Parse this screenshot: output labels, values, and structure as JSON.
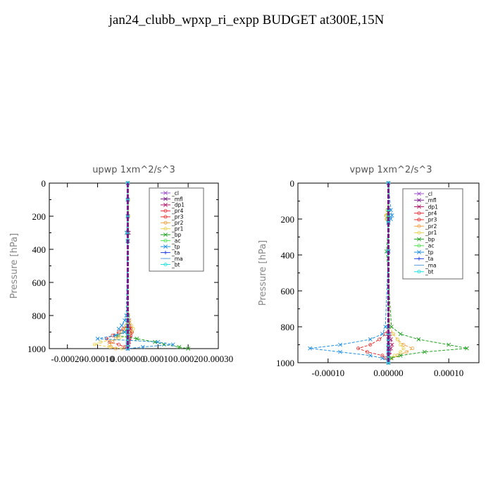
{
  "figure": {
    "title": "jan24_clubb_wpxp_ri_expp  BUDGET at300E,15N"
  },
  "chart_data": [
    {
      "type": "line",
      "title": "upwp   1xm^2/s^3",
      "ylabel": "Pressure [hPa]",
      "xlabel": "",
      "ylim": [
        1000,
        0
      ],
      "xlim": [
        -0.00026,
        0.0003
      ],
      "y_ticks": [
        "0",
        "200",
        "400",
        "600",
        "800",
        "1000"
      ],
      "x_ticks": [
        "-0.00020",
        "-0.00010",
        "0.000000",
        "0.00010",
        "0.00020",
        "0.00030"
      ],
      "legend_position": "top-right",
      "levels": [
        0,
        100,
        200,
        300,
        350,
        800,
        830,
        860,
        880,
        900,
        920,
        940,
        960,
        975,
        990,
        1000
      ],
      "series": [
        {
          "name": "_cl",
          "color": "#a050c8",
          "marker": "x",
          "values": [
            0,
            0,
            0,
            0,
            0,
            0,
            0,
            0,
            0,
            0,
            0,
            0,
            0,
            0,
            0,
            0
          ]
        },
        {
          "name": "_mfl",
          "color": "#7a1a8a",
          "marker": "x",
          "values": [
            0,
            0,
            0,
            0,
            0,
            0,
            0,
            0,
            0,
            0,
            0,
            0,
            0,
            0,
            0,
            0
          ]
        },
        {
          "name": "_dp1",
          "color": "#b0186a",
          "marker": "x",
          "values": [
            0,
            0,
            0,
            3e-06,
            0,
            0,
            4e-06,
            6e-06,
            8e-06,
            1e-05,
            8e-06,
            6e-06,
            4e-06,
            2e-06,
            1e-06,
            0
          ]
        },
        {
          "name": "_pr4",
          "color": "#e8303a",
          "marker": "o",
          "values": [
            0,
            0,
            0,
            0,
            0,
            0,
            2e-06,
            6e-06,
            1e-05,
            1.4e-05,
            1e-05,
            6e-06,
            3e-06,
            1e-06,
            0,
            0
          ]
        },
        {
          "name": "_pr3",
          "color": "#e83030",
          "marker": "o",
          "values": [
            0,
            0,
            0,
            0,
            0,
            0,
            0,
            -5e-06,
            -1.5e-05,
            -3e-05,
            -5e-05,
            -7e-05,
            -6e-05,
            -3e-05,
            -1e-05,
            0
          ]
        },
        {
          "name": "_pr2",
          "color": "#f0a040",
          "marker": "o",
          "values": [
            0,
            0,
            0,
            0,
            0,
            0,
            0,
            -5e-06,
            -1e-05,
            -2e-05,
            -3e-05,
            -4e-05,
            -5e-05,
            -6e-05,
            -5.5e-05,
            -4e-05
          ]
        },
        {
          "name": "_pr1",
          "color": "#e8d050",
          "marker": "o",
          "values": [
            0,
            2e-06,
            3e-06,
            0,
            0,
            2e-06,
            6e-06,
            1.2e-05,
            1.8e-05,
            1.2e-05,
            4e-06,
            -3e-05,
            -9e-05,
            -0.00011,
            -6e-05,
            -2e-05
          ]
        },
        {
          "name": "_bp",
          "color": "#20a020",
          "marker": "x",
          "values": [
            0,
            0,
            0,
            0,
            0,
            0,
            0,
            0,
            -2e-06,
            -1e-05,
            -4e-05,
            3e-05,
            9e-05,
            0.00012,
            0.00017,
            0.0002
          ]
        },
        {
          "name": "_ac",
          "color": "#50e050",
          "marker": "o",
          "values": [
            0,
            0,
            0,
            0,
            0,
            0,
            0,
            0,
            0,
            0,
            0,
            0,
            0,
            0,
            0,
            0
          ]
        },
        {
          "name": "_tp",
          "color": "#2090e0",
          "marker": "x",
          "values": [
            0,
            0,
            0,
            -4e-06,
            0,
            -5e-06,
            -1e-05,
            -2e-05,
            -3e-05,
            -1e-05,
            -4e-05,
            -0.0001,
            0.0001,
            0.00015,
            5e-05,
            0
          ]
        },
        {
          "name": "_ta",
          "color": "#2040e0",
          "marker": "+",
          "values": [
            0,
            0,
            0,
            0,
            0,
            0,
            0,
            0,
            0,
            0,
            0,
            0,
            0,
            0,
            0,
            0
          ]
        },
        {
          "name": "_ma",
          "color": "#60a0e0",
          "marker": "-",
          "values": [
            0,
            0,
            0,
            0,
            0,
            0,
            0,
            0,
            0,
            0,
            0,
            0,
            0,
            0,
            0,
            0
          ]
        },
        {
          "name": "_bt",
          "color": "#20e0e0",
          "marker": "o",
          "values": [
            0,
            0,
            0,
            0,
            0,
            0,
            0,
            0,
            0,
            0,
            0,
            0,
            0,
            0,
            0,
            0
          ]
        }
      ]
    },
    {
      "type": "line",
      "title": "vpwp   1xm^2/s^3",
      "ylabel": "Pressure [hPa]",
      "xlabel": "",
      "ylim": [
        1000,
        0
      ],
      "xlim": [
        -0.00015,
        0.00015
      ],
      "y_ticks": [
        "0",
        "200",
        "400",
        "600",
        "800",
        "1000"
      ],
      "x_ticks": [
        "-0.00010",
        "0.00000",
        "0.00010"
      ],
      "legend_position": "top-right",
      "levels": [
        0,
        150,
        180,
        200,
        220,
        380,
        800,
        840,
        870,
        900,
        920,
        940,
        960,
        975,
        990,
        1000
      ],
      "series": [
        {
          "name": "_cl",
          "color": "#a050c8",
          "marker": "x",
          "values": [
            0,
            0,
            0,
            0,
            0,
            0,
            0,
            0,
            0,
            0,
            0,
            0,
            0,
            0,
            0,
            0
          ]
        },
        {
          "name": "_mfl",
          "color": "#7a1a8a",
          "marker": "x",
          "values": [
            0,
            0,
            0,
            0,
            0,
            0,
            0,
            0,
            0,
            0,
            0,
            0,
            0,
            0,
            0,
            0
          ]
        },
        {
          "name": "_dp1",
          "color": "#b0186a",
          "marker": "x",
          "values": [
            0,
            0,
            0,
            0,
            0,
            0,
            0,
            2e-06,
            4e-06,
            6e-06,
            4e-06,
            2e-06,
            1e-06,
            0,
            0,
            0
          ]
        },
        {
          "name": "_pr4",
          "color": "#e8303a",
          "marker": "o",
          "values": [
            0,
            0,
            0,
            0,
            0,
            0,
            0,
            0,
            0,
            0,
            0,
            0,
            0,
            0,
            0,
            0
          ]
        },
        {
          "name": "_pr3",
          "color": "#e83030",
          "marker": "o",
          "values": [
            0,
            0,
            0,
            0,
            0,
            0,
            0,
            -5e-06,
            -1.5e-05,
            -3e-05,
            -5e-05,
            -3.5e-05,
            -1e-05,
            -5e-06,
            0,
            0
          ]
        },
        {
          "name": "_pr2",
          "color": "#f0a040",
          "marker": "o",
          "values": [
            0,
            -2e-06,
            -4e-06,
            -3e-06,
            0,
            0,
            2e-06,
            8e-06,
            1.5e-05,
            2.5e-05,
            4e-05,
            3e-05,
            1.5e-05,
            5e-06,
            0,
            0
          ]
        },
        {
          "name": "_pr1",
          "color": "#e8d050",
          "marker": "o",
          "values": [
            0,
            -2e-06,
            -3e-06,
            -2e-06,
            0,
            0,
            2e-06,
            8e-06,
            1.5e-05,
            2e-05,
            2.5e-05,
            2e-05,
            1e-05,
            4e-06,
            0,
            0
          ]
        },
        {
          "name": "_bp",
          "color": "#20a020",
          "marker": "x",
          "values": [
            0,
            0,
            0,
            0,
            0,
            -3e-06,
            5e-06,
            2e-05,
            5e-05,
            0.0001,
            0.00013,
            6e-05,
            2e-05,
            5e-06,
            0,
            0
          ]
        },
        {
          "name": "_ac",
          "color": "#50e050",
          "marker": "o",
          "values": [
            0,
            0,
            0,
            0,
            0,
            0,
            0,
            0,
            0,
            0,
            0,
            0,
            0,
            0,
            0,
            0
          ]
        },
        {
          "name": "_tp",
          "color": "#2090e0",
          "marker": "x",
          "values": [
            0,
            4e-06,
            6e-06,
            4e-06,
            0,
            0,
            -5e-06,
            -1e-05,
            -3e-05,
            -8e-05,
            -0.00013,
            -8e-05,
            -3e-05,
            -1e-05,
            0,
            0
          ]
        },
        {
          "name": "_ta",
          "color": "#2040e0",
          "marker": "+",
          "values": [
            0,
            0,
            0,
            0,
            0,
            0,
            0,
            0,
            0,
            0,
            0,
            0,
            0,
            0,
            0,
            0
          ]
        },
        {
          "name": "_ma",
          "color": "#60a0e0",
          "marker": "-",
          "values": [
            0,
            0,
            0,
            0,
            0,
            0,
            0,
            0,
            0,
            0,
            0,
            0,
            0,
            0,
            0,
            0
          ]
        },
        {
          "name": "_bt",
          "color": "#20e0e0",
          "marker": "o",
          "values": [
            0,
            0,
            0,
            0,
            0,
            0,
            0,
            0,
            0,
            0,
            0,
            0,
            0,
            0,
            0,
            0
          ]
        }
      ]
    }
  ]
}
